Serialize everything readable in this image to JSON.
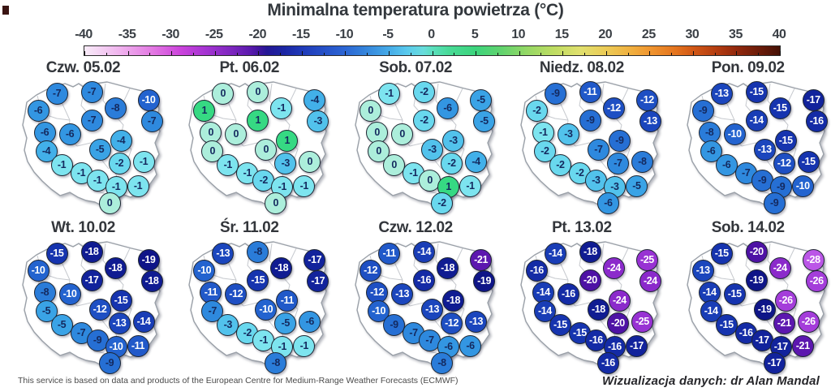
{
  "title": "Minimalna temperatura powietrza (°C)",
  "footer": {
    "left": "This service is based on data and products of the European Centre for Medium-Range Weather Forecasts (ECMWF)",
    "right": "Wizualizacja danych: dr Alan Mandal"
  },
  "colorbar": {
    "min": -40,
    "max": 40,
    "tick_labels": [
      "-40",
      "-35",
      "-30",
      "-25",
      "-20",
      "-15",
      "-10",
      "-5",
      "0",
      "5",
      "10",
      "15",
      "20",
      "25",
      "30",
      "35",
      "40"
    ],
    "gradient": [
      {
        "v": -40,
        "c": "#f8ecf8"
      },
      {
        "v": -36,
        "c": "#f0b4ee"
      },
      {
        "v": -32,
        "c": "#e276e2"
      },
      {
        "v": -29,
        "c": "#cc44dc"
      },
      {
        "v": -26,
        "c": "#a434d2"
      },
      {
        "v": -23,
        "c": "#7c26be"
      },
      {
        "v": -21,
        "c": "#5c1aae"
      },
      {
        "v": -20,
        "c": "#44169f"
      },
      {
        "v": -19,
        "c": "#241795"
      },
      {
        "v": -17,
        "c": "#1b26a4"
      },
      {
        "v": -15,
        "c": "#1f39b8"
      },
      {
        "v": -12,
        "c": "#2754ca"
      },
      {
        "v": -10,
        "c": "#2c66d4"
      },
      {
        "v": -8,
        "c": "#3380da"
      },
      {
        "v": -5,
        "c": "#45aae7"
      },
      {
        "v": -3,
        "c": "#58c8ed"
      },
      {
        "v": -1,
        "c": "#68dcdc"
      },
      {
        "v": 0,
        "c": "#5bdfbe"
      },
      {
        "v": 2,
        "c": "#48da96"
      },
      {
        "v": 5,
        "c": "#3cd47c"
      },
      {
        "v": 8,
        "c": "#62d36e"
      },
      {
        "v": 11,
        "c": "#96d865"
      },
      {
        "v": 14,
        "c": "#bedc62"
      },
      {
        "v": 17,
        "c": "#e0e06e"
      },
      {
        "v": 20,
        "c": "#eccb56"
      },
      {
        "v": 23,
        "c": "#f0ae3e"
      },
      {
        "v": 25,
        "c": "#f09630"
      },
      {
        "v": 28,
        "c": "#e4741e"
      },
      {
        "v": 30,
        "c": "#d25816"
      },
      {
        "v": 33,
        "c": "#b03a10"
      },
      {
        "v": 35,
        "c": "#92280d"
      },
      {
        "v": 38,
        "c": "#661a09"
      },
      {
        "v": 40,
        "c": "#451106"
      }
    ]
  },
  "marker_style": {
    "text_dark": "#14295e",
    "text_light": "#ffffff",
    "white_text_threshold": -10
  },
  "color_scale": {
    "1": "#36d983",
    "0": "#aceedb",
    "-1": "#7de4ef",
    "-2": "#69d8ee",
    "-3": "#52c2ec",
    "-4": "#42b0e9",
    "-5": "#3aa3e6",
    "-6": "#3396e2",
    "-7": "#2e89de",
    "-8": "#2a7cd9",
    "-9": "#266fd4",
    "-10": "#2363cf",
    "-11": "#2159c9",
    "-12": "#1e4fc3",
    "-13": "#1b46bd",
    "-14": "#193db6",
    "-15": "#1634af",
    "-16": "#142ba6",
    "-17": "#12239c",
    "-18": "#101c92",
    "-19": "#0f1588",
    "-20": "#4e12a5",
    "-21": "#5c17af",
    "-22": "#6c1db9",
    "-23": "#7c23c2",
    "-24": "#8b2acb",
    "-25": "#9832d3",
    "-26": "#a43dda",
    "-27": "#b04ae1",
    "-28": "#bb56e7"
  },
  "marker_positions": [
    [
      70,
      19
    ],
    [
      113,
      17
    ],
    [
      183,
      27
    ],
    [
      47,
      40
    ],
    [
      142,
      37
    ],
    [
      187,
      53
    ],
    [
      55,
      67
    ],
    [
      113,
      52
    ],
    [
      86,
      69
    ],
    [
      149,
      77
    ],
    [
      57,
      90
    ],
    [
      123,
      88
    ],
    [
      76,
      107
    ],
    [
      147,
      105
    ],
    [
      177,
      103
    ],
    [
      100,
      117
    ],
    [
      120,
      126
    ],
    [
      143,
      134
    ],
    [
      170,
      133
    ],
    [
      135,
      154
    ]
  ],
  "chart_data": {
    "type": "heatmap",
    "title": "Minimalna temperatura powietrza (°C)",
    "unit": "°C",
    "colorbar_range": [
      -40,
      40
    ],
    "colorbar_ticks": [
      -40,
      -35,
      -30,
      -25,
      -20,
      -15,
      -10,
      -5,
      0,
      5,
      10,
      15,
      20,
      25,
      30,
      35,
      40
    ],
    "panels": [
      {
        "label": "Czw. 05.02",
        "values": [
          -7,
          -7,
          -10,
          -6,
          -8,
          -7,
          -6,
          -7,
          -6,
          -4,
          -4,
          -5,
          -1,
          -2,
          -1,
          -1,
          -1,
          -1,
          -1,
          0
        ]
      },
      {
        "label": "Pt. 06.02",
        "values": [
          0,
          0,
          -4,
          1,
          -1,
          -3,
          0,
          1,
          0,
          1,
          0,
          0,
          -1,
          -3,
          0,
          -1,
          -2,
          -1,
          -1,
          0
        ]
      },
      {
        "label": "Sob. 07.02",
        "values": [
          -1,
          -2,
          -5,
          0,
          -6,
          -5,
          0,
          -2,
          0,
          -3,
          0,
          -3,
          0,
          -2,
          -4,
          -1,
          0,
          1,
          -1,
          -2
        ]
      },
      {
        "label": "Niedz. 08.02",
        "values": [
          -9,
          -11,
          -12,
          -2,
          -12,
          -13,
          -1,
          -9,
          -3,
          -9,
          -2,
          -7,
          -2,
          -7,
          -8,
          -2,
          -3,
          -3,
          -5,
          -6
        ]
      },
      {
        "label": "Pon. 09.02",
        "values": [
          -13,
          -15,
          -17,
          -9,
          -15,
          -16,
          -8,
          -14,
          -10,
          -15,
          -6,
          -13,
          -6,
          -12,
          -15,
          -7,
          -9,
          -9,
          -10,
          -9
        ]
      },
      {
        "label": "Wt. 10.02",
        "values": [
          -15,
          -18,
          -19,
          -10,
          -18,
          -18,
          -8,
          -17,
          -10,
          -15,
          -5,
          -12,
          -5,
          -13,
          -14,
          -7,
          -9,
          -10,
          -11,
          -9
        ]
      },
      {
        "label": "Śr. 11.02",
        "values": [
          -13,
          -8,
          -17,
          -10,
          -18,
          -17,
          -11,
          -15,
          -12,
          -11,
          -7,
          -10,
          -3,
          -5,
          -6,
          -2,
          -1,
          -1,
          -1,
          -8
        ]
      },
      {
        "label": "Czw. 12.02",
        "values": [
          -11,
          -14,
          -21,
          -12,
          -18,
          -19,
          -12,
          -16,
          -13,
          -18,
          -10,
          -13,
          -9,
          -12,
          -13,
          -7,
          -7,
          -6,
          -6,
          -8
        ]
      },
      {
        "label": "Pt. 13.02",
        "values": [
          -14,
          -18,
          -25,
          -16,
          -24,
          -24,
          -14,
          -20,
          -16,
          -24,
          -14,
          -18,
          -15,
          -20,
          -25,
          -15,
          -16,
          -16,
          -17,
          -16
        ]
      },
      {
        "label": "Sob. 14.02",
        "values": [
          -15,
          -20,
          -28,
          -13,
          -24,
          -26,
          -14,
          -19,
          -15,
          -26,
          -14,
          -19,
          -15,
          -21,
          -26,
          -16,
          -17,
          -17,
          -21,
          -17
        ]
      }
    ]
  }
}
